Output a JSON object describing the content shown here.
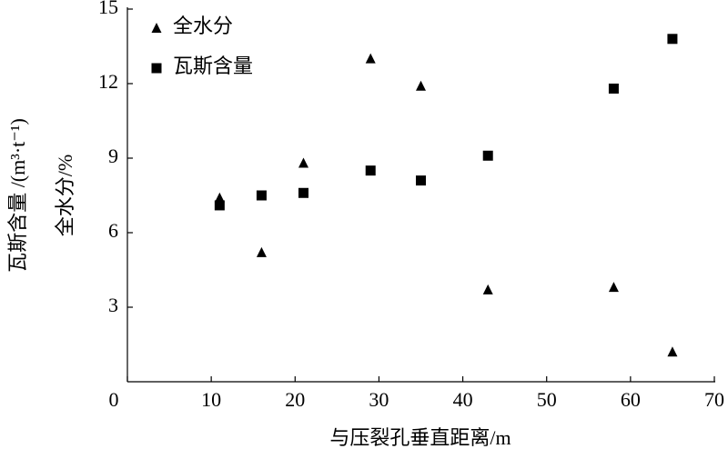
{
  "chart_data": {
    "type": "scatter",
    "x_label": "与压裂孔垂直距离/m",
    "y_label": [
      "瓦斯含量 /(m³·t⁻¹)",
      "全水分/%"
    ],
    "series": [
      {
        "name": "全水分",
        "marker": "triangle",
        "color": "#000000",
        "x": [
          11,
          16,
          21,
          29,
          35,
          43,
          58,
          65
        ],
        "values": [
          7.4,
          5.2,
          8.8,
          13.0,
          11.9,
          3.7,
          3.8,
          1.2
        ]
      },
      {
        "name": "瓦斯含量",
        "marker": "square",
        "color": "#000000",
        "x": [
          11,
          16,
          21,
          29,
          35,
          43,
          58,
          65
        ],
        "values": [
          7.1,
          7.5,
          7.6,
          8.5,
          8.1,
          9.1,
          11.8,
          13.8
        ]
      }
    ],
    "xlim": [
      0,
      70
    ],
    "xticks": [
      0,
      10,
      20,
      30,
      40,
      50,
      60,
      70
    ],
    "ylim": [
      0,
      15
    ],
    "yticks": [
      3,
      6,
      9,
      12,
      15
    ],
    "legend": "upper left"
  }
}
